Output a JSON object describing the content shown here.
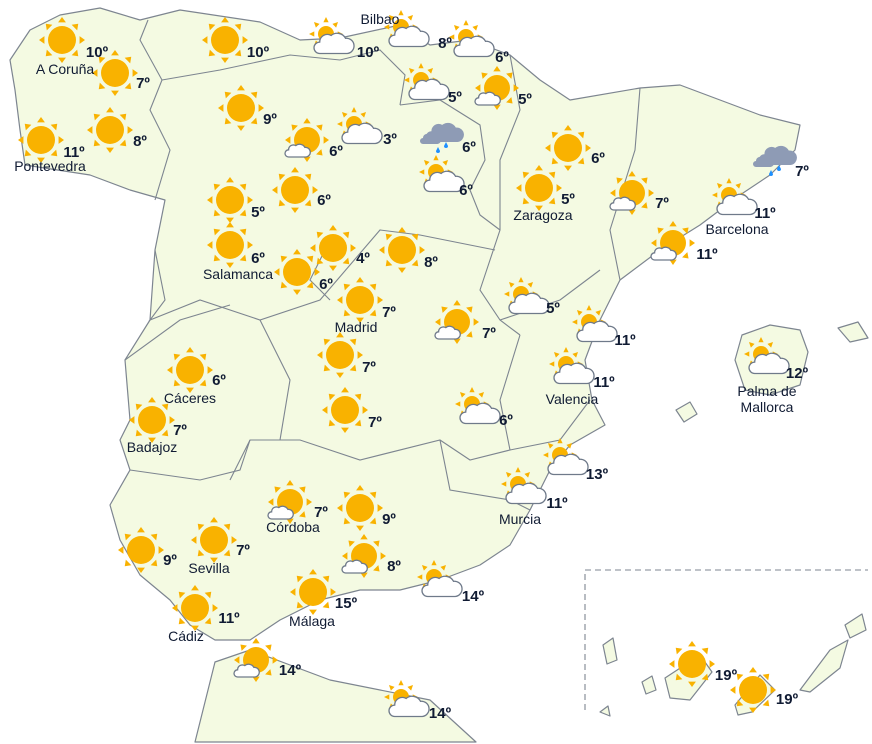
{
  "colors": {
    "land": "#f4fae2",
    "sun": "#f9b200",
    "cloud": "#ffffff",
    "cloud_stroke": "#6f7a8a",
    "rain_cloud": "#8e9bb5",
    "rain_drop": "#1e90ff",
    "text": "#101b33"
  },
  "cities": [
    "A Coruña",
    "Pontevedra",
    "Bilbao",
    "Salamanca",
    "Madrid",
    "Zaragoza",
    "Barcelona",
    "Cáceres",
    "Badajoz",
    "Valencia",
    "Palma de",
    "Mallorca",
    "Córdoba",
    "Sevilla",
    "Murcia",
    "Málaga",
    "Cádiz"
  ],
  "stations": [
    {
      "icon": "sun",
      "temp": "10º"
    },
    {
      "icon": "sun",
      "temp": "7º"
    },
    {
      "icon": "sun",
      "temp": "11º"
    },
    {
      "icon": "sun",
      "temp": "8º"
    },
    {
      "icon": "sun",
      "temp": "10º"
    },
    {
      "icon": "partly-cloudy",
      "temp": "10º"
    },
    {
      "icon": "partly-cloudy",
      "temp": "8º"
    },
    {
      "icon": "partly-cloudy",
      "temp": "6º"
    },
    {
      "icon": "partly-cloudy",
      "temp": "5º"
    },
    {
      "icon": "sun-small-cloud",
      "temp": "5º"
    },
    {
      "icon": "sun",
      "temp": "9º"
    },
    {
      "icon": "sun-small-cloud",
      "temp": "6º"
    },
    {
      "icon": "partly-cloudy",
      "temp": "3º"
    },
    {
      "icon": "rain",
      "temp": "6º"
    },
    {
      "icon": "partly-cloudy",
      "temp": "6º"
    },
    {
      "icon": "sun",
      "temp": "6º"
    },
    {
      "icon": "sun",
      "temp": "5º"
    },
    {
      "icon": "sun",
      "temp": "6º"
    },
    {
      "icon": "sun",
      "temp": "5º"
    },
    {
      "icon": "sun-small-cloud",
      "temp": "7º"
    },
    {
      "icon": "rain",
      "temp": "7º"
    },
    {
      "icon": "partly-cloudy",
      "temp": "11º"
    },
    {
      "icon": "sun-small-cloud",
      "temp": "11º"
    },
    {
      "icon": "sun",
      "temp": "6º"
    },
    {
      "icon": "sun",
      "temp": "4º"
    },
    {
      "icon": "sun",
      "temp": "8º"
    },
    {
      "icon": "sun",
      "temp": "6º"
    },
    {
      "icon": "sun",
      "temp": "7º"
    },
    {
      "icon": "partly-cloudy",
      "temp": "5º"
    },
    {
      "icon": "sun-small-cloud",
      "temp": "7º"
    },
    {
      "icon": "partly-cloudy",
      "temp": "11º"
    },
    {
      "icon": "partly-cloudy",
      "temp": "11º"
    },
    {
      "icon": "partly-cloudy",
      "temp": "12º"
    },
    {
      "icon": "sun",
      "temp": "6º"
    },
    {
      "icon": "sun",
      "temp": "7º"
    },
    {
      "icon": "sun",
      "temp": "7º"
    },
    {
      "icon": "sun",
      "temp": "7º"
    },
    {
      "icon": "partly-cloudy",
      "temp": "6º"
    },
    {
      "icon": "partly-cloudy",
      "temp": "13º"
    },
    {
      "icon": "partly-cloudy",
      "temp": "11º"
    },
    {
      "icon": "sun-small-cloud",
      "temp": "7º"
    },
    {
      "icon": "sun",
      "temp": "9º"
    },
    {
      "icon": "sun",
      "temp": "7º"
    },
    {
      "icon": "sun-small-cloud",
      "temp": "8º"
    },
    {
      "icon": "sun",
      "temp": "9º"
    },
    {
      "icon": "partly-cloudy",
      "temp": "14º"
    },
    {
      "icon": "sun",
      "temp": "15º"
    },
    {
      "icon": "sun",
      "temp": "11º"
    },
    {
      "icon": "sun-small-cloud",
      "temp": "14º"
    },
    {
      "icon": "partly-cloudy",
      "temp": "14º"
    },
    {
      "icon": "sun",
      "temp": "19º"
    },
    {
      "icon": "sun",
      "temp": "19º"
    }
  ]
}
